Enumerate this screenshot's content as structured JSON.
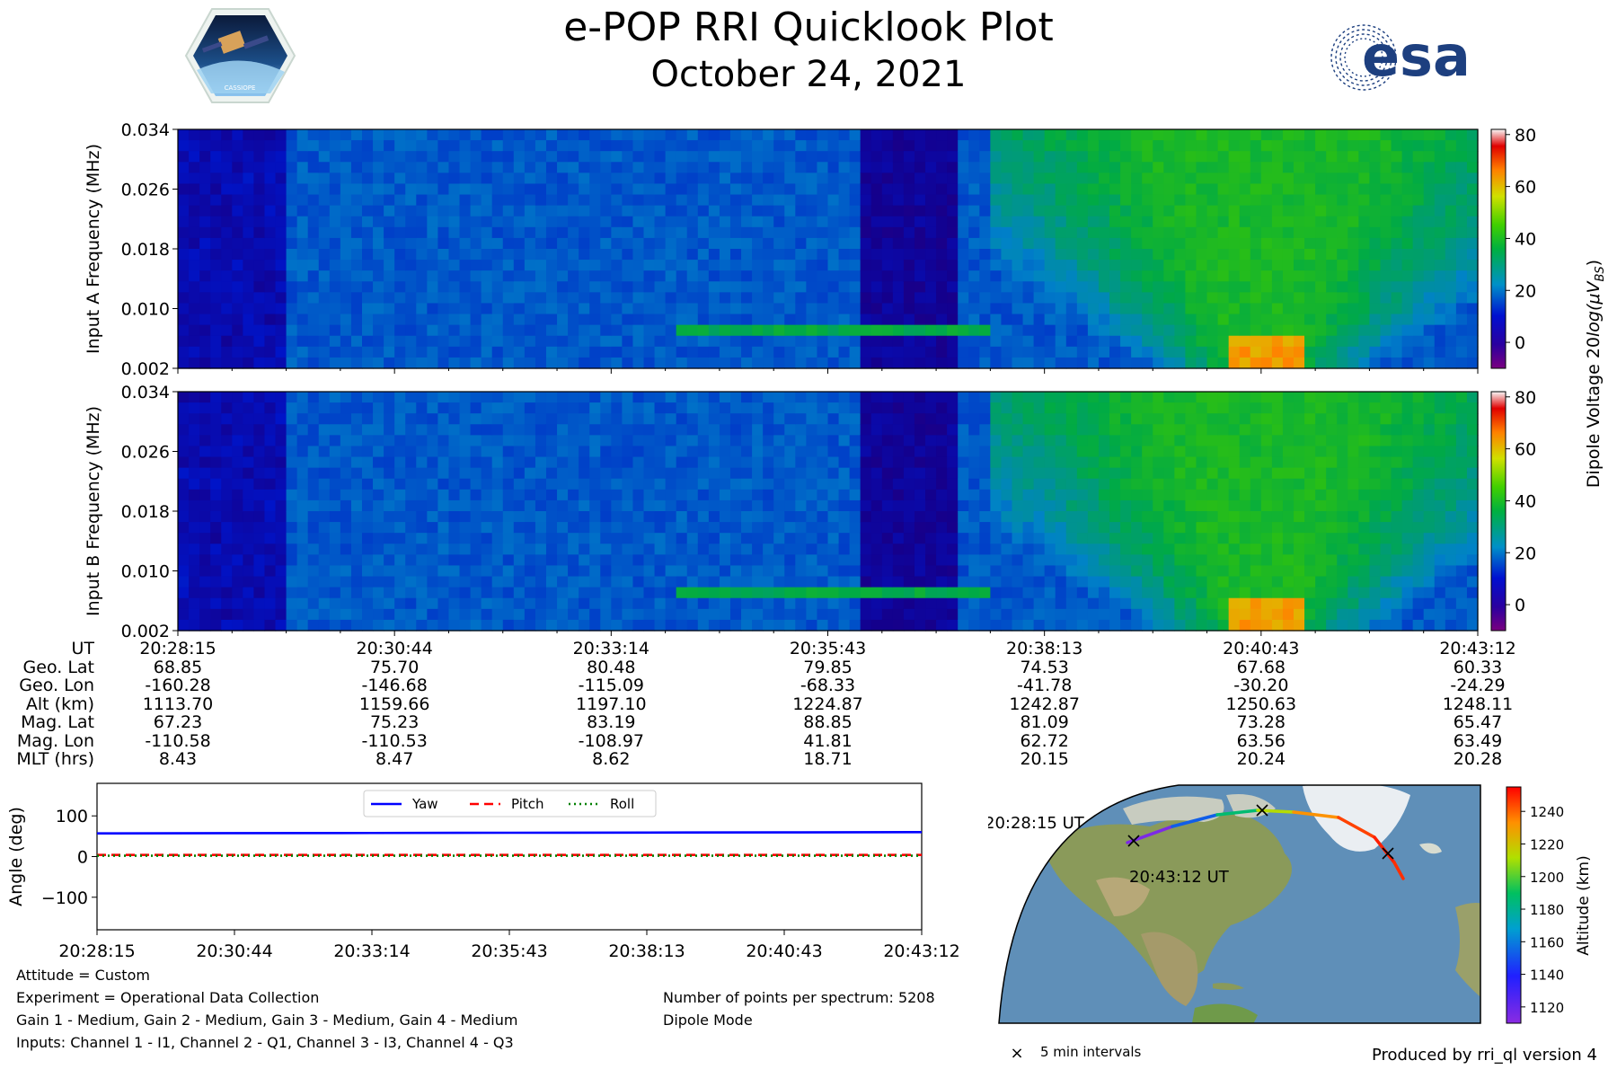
{
  "header": {
    "title": "e-POP RRI Quicklook Plot",
    "date": "October 24, 2021",
    "cassiope_logo_text": "CASSIOPE",
    "esa_logo_text": "esa"
  },
  "spectrograms": [
    {
      "ylabel": "Input A Frequency (MHz)",
      "yticks": [
        "0.002",
        "0.010",
        "0.018",
        "0.026",
        "0.034"
      ]
    },
    {
      "ylabel": "Input B Frequency (MHz)",
      "yticks": [
        "0.002",
        "0.010",
        "0.018",
        "0.026",
        "0.034"
      ]
    }
  ],
  "colorbar": {
    "label_prefix": "Dipole Voltage 20",
    "label_log": "log(μV",
    "label_sub": "BS",
    "label_suffix": ")",
    "ticks": [
      "80",
      "60",
      "40",
      "20",
      "0"
    ],
    "range": [
      -10,
      82
    ]
  },
  "ephemeris": {
    "row_labels": [
      "UT",
      "Geo. Lat",
      "Geo. Lon",
      "Alt (km)",
      "Mag. Lat",
      "Mag. Lon",
      "MLT (hrs)"
    ],
    "columns": [
      [
        "20:28:15",
        "68.85",
        "-160.28",
        "1113.70",
        "67.23",
        "-110.58",
        "8.43"
      ],
      [
        "20:30:44",
        "75.70",
        "-146.68",
        "1159.66",
        "75.23",
        "-110.53",
        "8.47"
      ],
      [
        "20:33:14",
        "80.48",
        "-115.09",
        "1197.10",
        "83.19",
        "-108.97",
        "8.62"
      ],
      [
        "20:35:43",
        "79.85",
        "-68.33",
        "1224.87",
        "88.85",
        "41.81",
        "18.71"
      ],
      [
        "20:38:13",
        "74.53",
        "-41.78",
        "1242.87",
        "81.09",
        "62.72",
        "20.15"
      ],
      [
        "20:40:43",
        "67.68",
        "-30.20",
        "1250.63",
        "73.28",
        "63.56",
        "20.24"
      ],
      [
        "20:43:12",
        "60.33",
        "-24.29",
        "1248.11",
        "65.47",
        "63.49",
        "20.28"
      ]
    ]
  },
  "chart_data": {
    "type": "line",
    "ylabel": "Angle (deg)",
    "xticks": [
      "20:28:15",
      "20:30:44",
      "20:33:14",
      "20:35:43",
      "20:38:13",
      "20:40:43",
      "20:43:12"
    ],
    "yticks": [
      "100",
      "0",
      "−100"
    ],
    "ylim": [
      -180,
      180
    ],
    "series": [
      {
        "name": "Yaw",
        "color": "#0000ff",
        "style": "solid",
        "values": [
          57,
          57.5,
          58,
          58.5,
          59,
          59.5,
          60
        ]
      },
      {
        "name": "Pitch",
        "color": "#ff0000",
        "style": "dashed",
        "values": [
          4,
          4,
          4,
          4,
          4,
          4,
          4
        ]
      },
      {
        "name": "Roll",
        "color": "#008000",
        "style": "dotted",
        "values": [
          2,
          2,
          2,
          2,
          2,
          2,
          2
        ]
      }
    ],
    "legend_position": "top-center"
  },
  "notes_left": [
    "Attitude = Custom",
    "Experiment = Operational Data Collection",
    "Gain 1 - Medium, Gain 2 - Medium, Gain 3 - Medium, Gain 4 - Medium",
    "Inputs: Channel 1 - I1, Channel 2 - Q1, Channel 3 - I3, Channel 4 - Q3"
  ],
  "notes_right": [
    "Number of points per spectrum: 5208",
    "Dipole Mode"
  ],
  "map": {
    "start_label": "20:28:15 UT",
    "end_label": "20:43:12 UT",
    "legend_marker": "×",
    "legend_label": "5 min intervals",
    "colorbar_label": "Altitude (km)",
    "colorbar_ticks": [
      "1240",
      "1220",
      "1200",
      "1180",
      "1160",
      "1140",
      "1120"
    ],
    "altitude_range": [
      1110,
      1255
    ]
  },
  "footer": {
    "produced_by": "Produced by rri_ql version 4"
  }
}
